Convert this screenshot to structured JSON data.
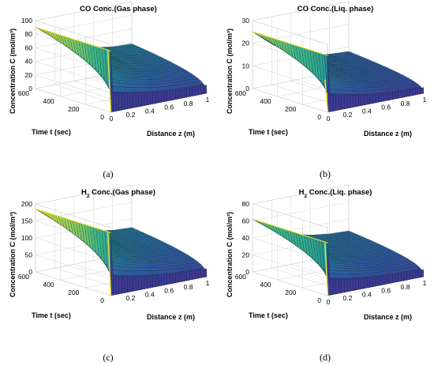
{
  "chart_data": [
    {
      "type": "surface",
      "panel": "(a)",
      "title": "CO Conc.(Gas phase)",
      "title_main": "CO Conc.",
      "title_sub": "",
      "title_rest": "(Gas phase)",
      "zlabel": "Concentration C (mol/m³)",
      "xlabel": "Distance z (m)",
      "ylabel": "Time t (sec)",
      "xlim": [
        0,
        1
      ],
      "ylim": [
        0,
        600
      ],
      "zlim": [
        0,
        100
      ],
      "xticks": [
        "0",
        "0.2",
        "0.4",
        "0.6",
        "0.8",
        "1"
      ],
      "yticks": [
        "0",
        "200",
        "400",
        "600"
      ],
      "zticks": [
        "0",
        "20",
        "40",
        "60",
        "80",
        "100"
      ],
      "series": [
        {
          "t": 600,
          "z": [
            0,
            0.2,
            0.4,
            0.6,
            0.8,
            1
          ],
          "C": [
            90,
            70,
            55,
            44,
            39,
            38
          ]
        },
        {
          "t": 0,
          "z": [
            0,
            0.02,
            0.2,
            0.4,
            0.6,
            0.8,
            1
          ],
          "C": [
            90,
            0,
            0,
            0,
            0,
            0,
            0
          ]
        }
      ]
    },
    {
      "type": "surface",
      "panel": "(b)",
      "title": "CO Conc.(Liq. phase)",
      "title_main": "CO Conc.",
      "title_sub": "",
      "title_rest": "(Liq. phase)",
      "zlabel": "Concentration C (mol/m³)",
      "xlabel": "Distance z (m)",
      "ylabel": "Time t (sec)",
      "xlim": [
        0,
        1
      ],
      "ylim": [
        0,
        600
      ],
      "zlim": [
        0,
        30
      ],
      "xticks": [
        "0",
        "0.2",
        "0.4",
        "0.6",
        "0.8",
        "1"
      ],
      "yticks": [
        "0",
        "200",
        "400",
        "600"
      ],
      "zticks": [
        "0",
        "10",
        "20",
        "30"
      ],
      "series": [
        {
          "t": 600,
          "z": [
            0,
            0.2,
            0.4,
            0.6,
            0.8,
            1
          ],
          "C": [
            25,
            18,
            13,
            10,
            8.5,
            8
          ]
        },
        {
          "t": 0,
          "z": [
            0,
            0.02,
            0.2,
            0.4,
            0.6,
            0.8,
            1
          ],
          "C": [
            14,
            0,
            0,
            0,
            0,
            0,
            0
          ]
        }
      ]
    },
    {
      "type": "surface",
      "panel": "(c)",
      "title": "H2 Conc.(Gas phase)",
      "title_main": "H",
      "title_sub": "2",
      "title_rest": " Conc.(Gas phase)",
      "zlabel": "Concentration C (mol/m³)",
      "xlabel": "Distance z (m)",
      "ylabel": "Time t (sec)",
      "xlim": [
        0,
        1
      ],
      "ylim": [
        0,
        600
      ],
      "zlim": [
        0,
        200
      ],
      "xticks": [
        "0.2",
        "0.4",
        "0.6",
        "0.8",
        "1"
      ],
      "yticks": [
        "0",
        "200",
        "400",
        "600"
      ],
      "zticks": [
        "0",
        "50",
        "100",
        "150",
        "200"
      ],
      "series": [
        {
          "t": 600,
          "z": [
            0,
            0.2,
            0.4,
            0.6,
            0.8,
            1
          ],
          "C": [
            185,
            140,
            110,
            88,
            78,
            75
          ]
        },
        {
          "t": 0,
          "z": [
            0,
            0.02,
            0.2,
            0.4,
            0.6,
            0.8,
            1
          ],
          "C": [
            185,
            0,
            0,
            0,
            0,
            0,
            0
          ]
        }
      ]
    },
    {
      "type": "surface",
      "panel": "(d)",
      "title": "H2 Conc.(Liq. phase)",
      "title_main": "H",
      "title_sub": "2",
      "title_rest": " Conc.(Liq. phase)",
      "zlabel": "Concentration C (mol/m³)",
      "xlabel": "Distance z (m)",
      "ylabel": "Time t (sec)",
      "xlim": [
        0,
        1
      ],
      "ylim": [
        0,
        600
      ],
      "zlim": [
        0,
        80
      ],
      "xticks": [
        "0",
        "0.2",
        "0.4",
        "0.6",
        "0.8",
        "1"
      ],
      "yticks": [
        "0",
        "200",
        "400",
        "600"
      ],
      "zticks": [
        "0",
        "20",
        "40",
        "60",
        "80"
      ],
      "series": [
        {
          "t": 600,
          "z": [
            0,
            0.2,
            0.4,
            0.6,
            0.8,
            1
          ],
          "C": [
            62,
            46,
            36,
            30,
            27,
            26
          ]
        },
        {
          "t": 0,
          "z": [
            0,
            0.02,
            0.2,
            0.4,
            0.6,
            0.8,
            1
          ],
          "C": [
            62,
            0,
            0,
            0,
            0,
            0,
            0
          ]
        }
      ]
    }
  ],
  "colors": {
    "yellow": "#f2e52a",
    "green": "#3fb88a",
    "teal": "#1f8e9a",
    "blue": "#2d5fa8",
    "navy": "#3b3a94",
    "edge": "#000000",
    "grid": "#d9d9d9"
  }
}
